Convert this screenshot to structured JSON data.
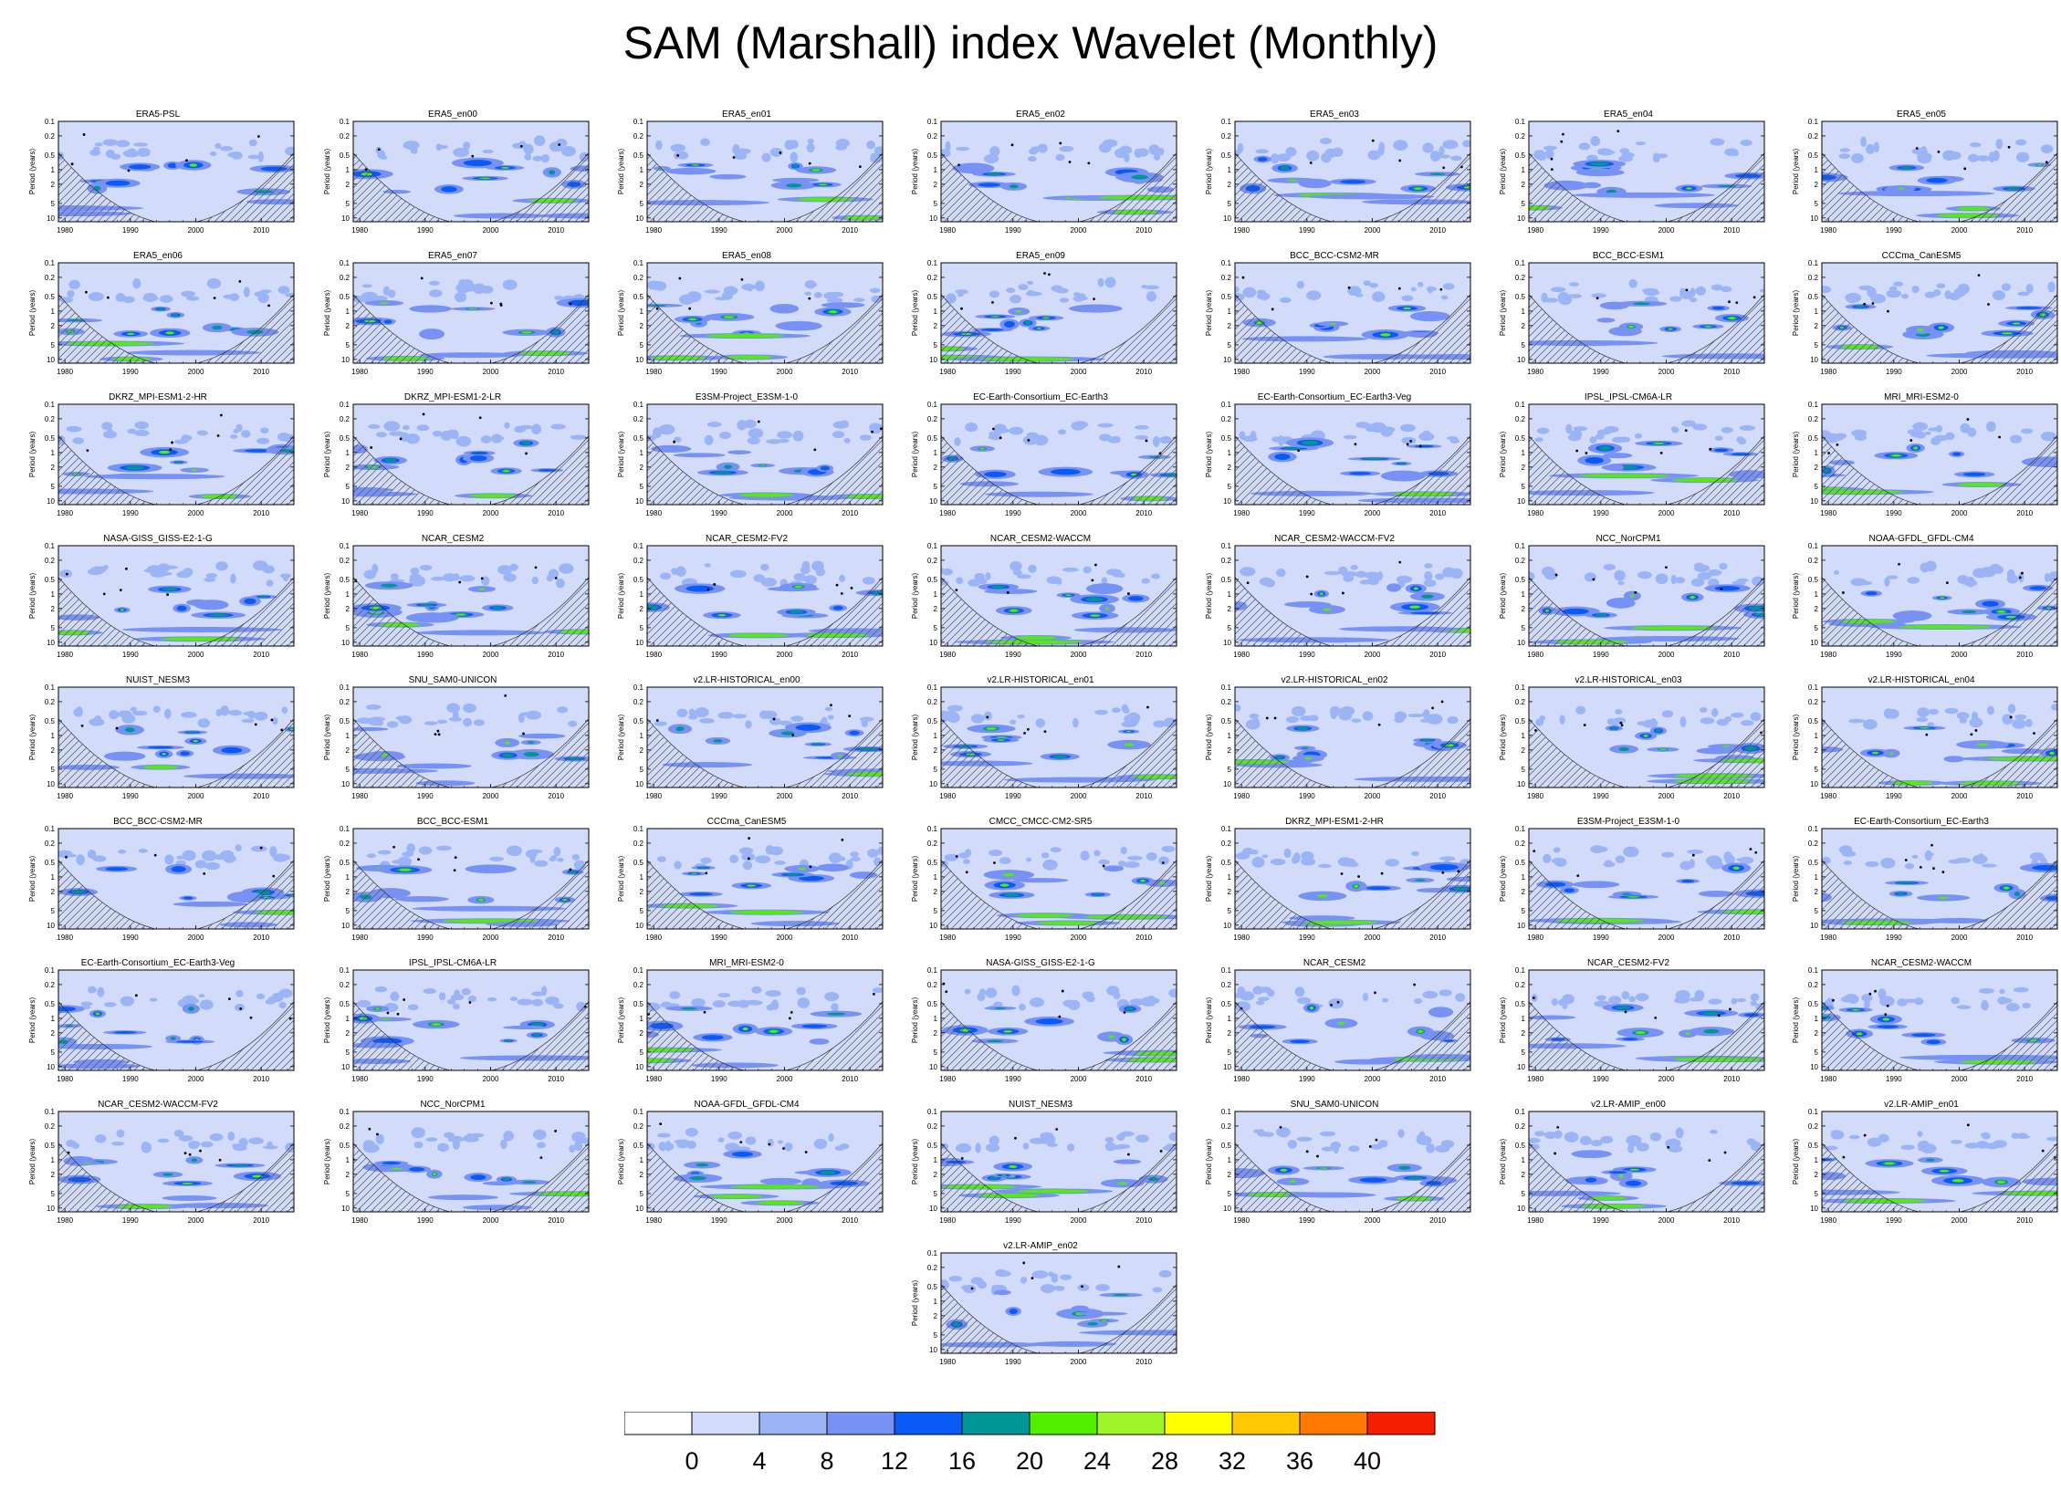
{
  "title": "SAM (Marshall) index Wavelet (Monthly)",
  "y_axis_label": "Period (years)",
  "y_ticks": [
    "0.1",
    "0.2",
    "0.5",
    "1",
    "2",
    "5",
    "10"
  ],
  "x_ticks": [
    "1980",
    "1990",
    "2000",
    "2010"
  ],
  "panels": [
    "ERA5-PSL",
    "ERA5_en00",
    "ERA5_en01",
    "ERA5_en02",
    "ERA5_en03",
    "ERA5_en04",
    "ERA5_en05",
    "ERA5_en06",
    "ERA5_en07",
    "ERA5_en08",
    "ERA5_en09",
    "BCC_BCC-CSM2-MR",
    "BCC_BCC-ESM1",
    "CCCma_CanESM5",
    "DKRZ_MPI-ESM1-2-HR",
    "DKRZ_MPI-ESM1-2-LR",
    "E3SM-Project_E3SM-1-0",
    "EC-Earth-Consortium_EC-Earth3",
    "EC-Earth-Consortium_EC-Earth3-Veg",
    "IPSL_IPSL-CM6A-LR",
    "MRI_MRI-ESM2-0",
    "NASA-GISS_GISS-E2-1-G",
    "NCAR_CESM2",
    "NCAR_CESM2-FV2",
    "NCAR_CESM2-WACCM",
    "NCAR_CESM2-WACCM-FV2",
    "NCC_NorCPM1",
    "NOAA-GFDL_GFDL-CM4",
    "NUIST_NESM3",
    "SNU_SAM0-UNICON",
    "v2.LR-HISTORICAL_en00",
    "v2.LR-HISTORICAL_en01",
    "v2.LR-HISTORICAL_en02",
    "v2.LR-HISTORICAL_en03",
    "v2.LR-HISTORICAL_en04",
    "BCC_BCC-CSM2-MR",
    "BCC_BCC-ESM1",
    "CCCma_CanESM5",
    "CMCC_CMCC-CM2-SR5",
    "DKRZ_MPI-ESM1-2-HR",
    "E3SM-Project_E3SM-1-0",
    "EC-Earth-Consortium_EC-Earth3",
    "EC-Earth-Consortium_EC-Earth3-Veg",
    "IPSL_IPSL-CM6A-LR",
    "MRI_MRI-ESM2-0",
    "NASA-GISS_GISS-E2-1-G",
    "NCAR_CESM2",
    "NCAR_CESM2-FV2",
    "NCAR_CESM2-WACCM",
    "NCAR_CESM2-WACCM-FV2",
    "NCC_NorCPM1",
    "NOAA-GFDL_GFDL-CM4",
    "NUIST_NESM3",
    "SNU_SAM0-UNICON",
    "v2.LR-AMIP_en00",
    "v2.LR-AMIP_en01",
    "v2.LR-AMIP_en02"
  ],
  "colorbar": {
    "labels": [
      "0",
      "4",
      "8",
      "12",
      "16",
      "20",
      "24",
      "28",
      "32",
      "36",
      "40"
    ],
    "colors": [
      "#ffffff",
      "#d2dcfa",
      "#9bb4f5",
      "#7891f5",
      "#0a5af5",
      "#009696",
      "#50f000",
      "#a0f528",
      "#ffff00",
      "#ffc800",
      "#ff7800",
      "#f51e00"
    ]
  },
  "chart_data": {
    "type": "heatmap",
    "title": "SAM (Marshall) index Wavelet (Monthly)",
    "ylabel": "Period (years)",
    "y_scale": "log",
    "y_inverted": true,
    "ylim": [
      0.1,
      12
    ],
    "xlim": [
      1979,
      2015
    ],
    "x_ticks": [
      1980,
      1990,
      2000,
      2010
    ],
    "y_ticks": [
      0.1,
      0.2,
      0.5,
      1,
      2,
      5,
      10
    ],
    "panel_count": 57,
    "color_levels": [
      0,
      4,
      8,
      12,
      16,
      20,
      24,
      28,
      32,
      36,
      40
    ],
    "color_scale": [
      "#ffffff",
      "#d2dcfa",
      "#9bb4f5",
      "#7891f5",
      "#0a5af5",
      "#009696",
      "#50f000",
      "#a0f528",
      "#ffff00",
      "#ffc800",
      "#ff7800",
      "#f51e00"
    ],
    "features": "cone of influence (hatched), significance contours (black dots)"
  }
}
